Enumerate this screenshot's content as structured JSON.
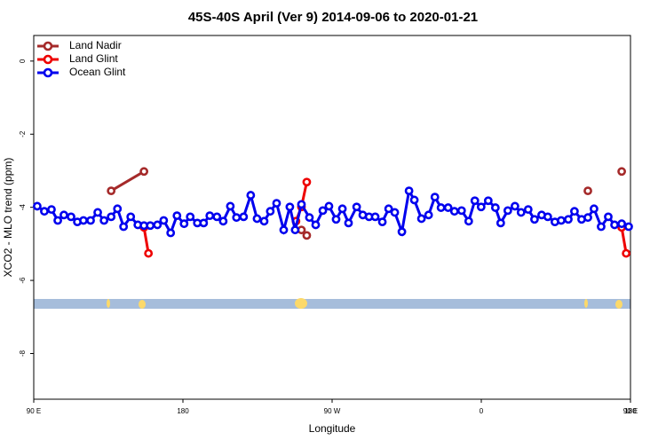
{
  "chart_data": {
    "type": "line",
    "title": "45S-40S April (Ver 9)   2014-09-06 to 2020-01-21",
    "x_label": "Longitude",
    "y_label": "XCO2 - MLO trend (ppm)",
    "xlim": [
      90,
      450
    ],
    "xticks": [
      {
        "value": 90,
        "label": "90 E"
      },
      {
        "value": 180,
        "label": "180"
      },
      {
        "value": 270,
        "label": "90 W"
      },
      {
        "value": 360,
        "label": "0"
      },
      {
        "value": 450,
        "label": "90 E"
      },
      {
        "value": 540,
        "label": "180"
      }
    ],
    "ylim": [
      -9.25,
      0.7
    ],
    "yticks": [
      0,
      -2,
      -4,
      -6,
      -8
    ],
    "legend": "top-left",
    "series": [
      {
        "name": "Land Nadir",
        "color": "#a52a2a",
        "x": [
          136.7,
          156.5,
          null,
          251.5,
          254.7,
          null,
          424.3,
          null,
          444.7
        ],
        "values": [
          -3.55,
          -3.02,
          null,
          -4.62,
          -4.77,
          null,
          -3.55,
          null,
          -3.02
        ]
      },
      {
        "name": "Land Glint",
        "color": "#ee0000",
        "x": [
          156.5,
          159.2,
          null,
          248.2,
          251.5,
          254.7,
          null,
          444.7,
          447.4
        ],
        "values": [
          -4.55,
          -5.26,
          null,
          -4.38,
          -3.99,
          -3.31,
          null,
          -4.55,
          -5.26
        ]
      },
      {
        "name": "Ocean Glint",
        "color": "#0000ee",
        "x": [
          92.1,
          96.4,
          100.7,
          104.5,
          108.2,
          112.5,
          116.3,
          120.0,
          124.3,
          128.6,
          132.4,
          136.7,
          140.5,
          144.2,
          148.5,
          152.8,
          156.5,
          160.3,
          164.6,
          168.4,
          172.6,
          176.4,
          180.7,
          184.4,
          188.7,
          192.5,
          196.2,
          200.5,
          204.3,
          208.6,
          212.3,
          216.6,
          220.9,
          224.7,
          229.0,
          232.7,
          236.5,
          240.8,
          244.5,
          247.7,
          251.5,
          256.3,
          260.1,
          264.4,
          268.1,
          272.4,
          276.2,
          279.9,
          284.8,
          288.5,
          292.3,
          296.0,
          300.3,
          304.1,
          307.8,
          312.1,
          316.4,
          319.6,
          323.9,
          328.2,
          332.0,
          335.7,
          340.0,
          343.8,
          348.1,
          352.4,
          356.1,
          359.9,
          364.2,
          368.5,
          371.7,
          376.0,
          380.3,
          384.0,
          388.3,
          392.1,
          396.4,
          400.1,
          404.4,
          408.2,
          412.5,
          416.2,
          420.5,
          424.3,
          428.0,
          432.3,
          436.6,
          440.4,
          444.7,
          448.9
        ],
        "values": [
          -3.97,
          -4.11,
          -4.06,
          -4.36,
          -4.21,
          -4.26,
          -4.4,
          -4.36,
          -4.36,
          -4.14,
          -4.36,
          -4.26,
          -4.04,
          -4.53,
          -4.26,
          -4.48,
          -4.5,
          -4.5,
          -4.48,
          -4.36,
          -4.7,
          -4.23,
          -4.45,
          -4.26,
          -4.43,
          -4.43,
          -4.23,
          -4.26,
          -4.38,
          -3.97,
          -4.28,
          -4.26,
          -3.67,
          -4.31,
          -4.38,
          -4.11,
          -3.89,
          -4.62,
          -3.99,
          -4.62,
          -3.92,
          -4.28,
          -4.48,
          -4.09,
          -3.97,
          -4.33,
          -4.04,
          -4.43,
          -3.99,
          -4.21,
          -4.26,
          -4.26,
          -4.4,
          -4.04,
          -4.14,
          -4.67,
          -3.55,
          -3.8,
          -4.31,
          -4.21,
          -3.72,
          -4.01,
          -4.01,
          -4.11,
          -4.09,
          -4.38,
          -3.82,
          -3.99,
          -3.82,
          -4.01,
          -4.43,
          -4.09,
          -3.97,
          -4.14,
          -4.06,
          -4.33,
          -4.21,
          -4.26,
          -4.4,
          -4.36,
          -4.33,
          -4.11,
          -4.33,
          -4.28,
          -4.04,
          -4.53,
          -4.26,
          -4.48,
          -4.45,
          -4.53
        ]
      }
    ]
  }
}
